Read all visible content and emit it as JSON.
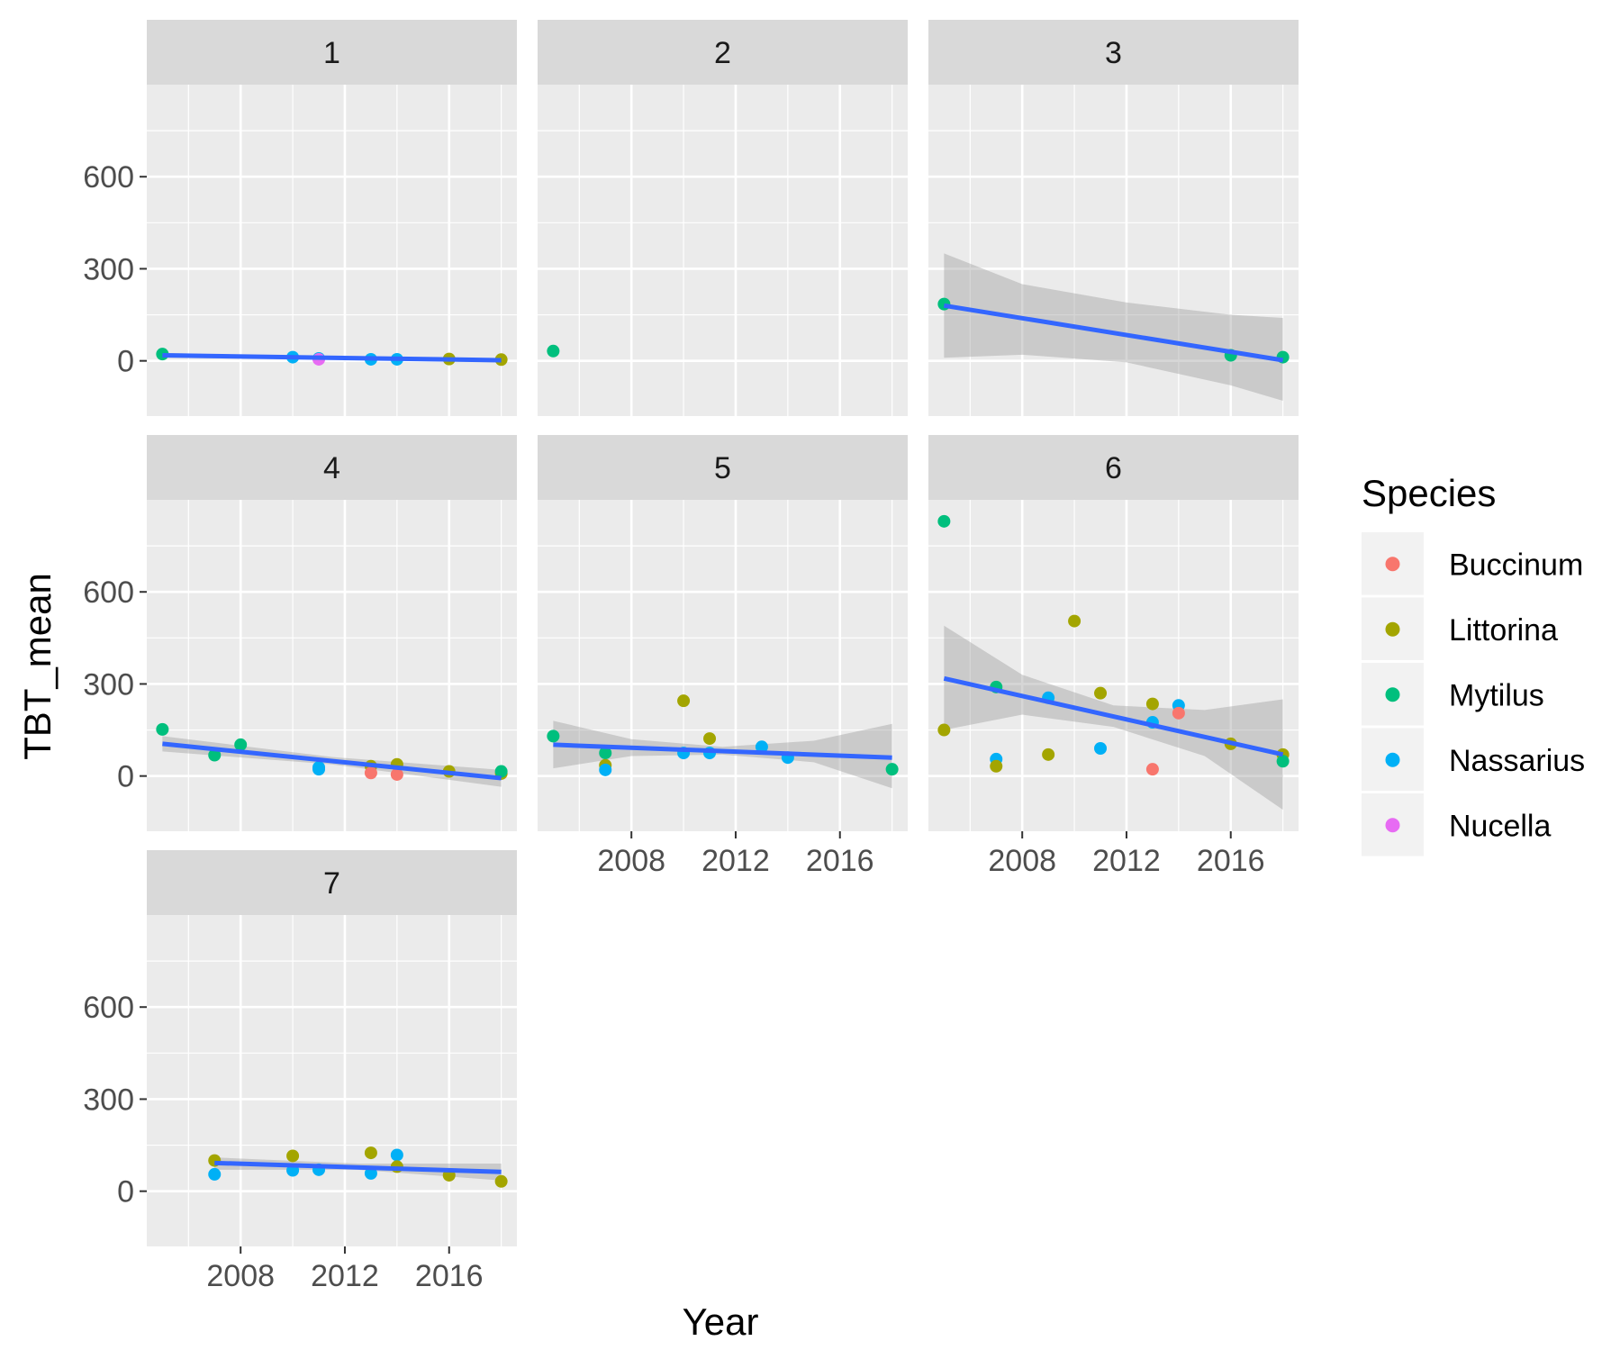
{
  "chart_data": {
    "type": "scatter",
    "xlabel": "Year",
    "ylabel": "TBT_mean",
    "xlim": [
      2004.4,
      2018.6
    ],
    "ylim": [
      -180,
      900
    ],
    "x_ticks": [
      2008,
      2012,
      2016
    ],
    "y_ticks": [
      0,
      300,
      600
    ],
    "grid": true,
    "legend_position": "right",
    "legend": {
      "title": "Species",
      "entries": [
        {
          "name": "Buccinum",
          "color": "#F8766D"
        },
        {
          "name": "Littorina",
          "color": "#A3A500"
        },
        {
          "name": "Mytilus",
          "color": "#00BF7D"
        },
        {
          "name": "Nassarius",
          "color": "#00B0F6"
        },
        {
          "name": "Nucella",
          "color": "#E76BF3"
        }
      ]
    },
    "panels": [
      {
        "label": "1",
        "points": [
          {
            "x": 2005,
            "y": 22,
            "species": "Mytilus"
          },
          {
            "x": 2010,
            "y": 12,
            "species": "Nassarius"
          },
          {
            "x": 2011,
            "y": 8,
            "species": "Nassarius"
          },
          {
            "x": 2011,
            "y": 5,
            "species": "Nucella"
          },
          {
            "x": 2013,
            "y": 5,
            "species": "Nassarius"
          },
          {
            "x": 2014,
            "y": 5,
            "species": "Nassarius"
          },
          {
            "x": 2016,
            "y": 6,
            "species": "Littorina"
          },
          {
            "x": 2018,
            "y": 4,
            "species": "Littorina"
          }
        ],
        "fit": {
          "x": [
            2005,
            2018
          ],
          "y": [
            18,
            2
          ]
        },
        "ci": {
          "x": [
            2005,
            2011.5,
            2018
          ],
          "upper": [
            26,
            12,
            9
          ],
          "lower": [
            10,
            4,
            -5
          ]
        }
      },
      {
        "label": "2",
        "points": [
          {
            "x": 2005,
            "y": 32,
            "species": "Mytilus"
          }
        ]
      },
      {
        "label": "3",
        "points": [
          {
            "x": 2005,
            "y": 185,
            "species": "Mytilus"
          },
          {
            "x": 2016,
            "y": 18,
            "species": "Mytilus"
          },
          {
            "x": 2018,
            "y": 12,
            "species": "Mytilus"
          }
        ],
        "fit": {
          "x": [
            2005,
            2018
          ],
          "y": [
            180,
            2
          ]
        },
        "ci": {
          "x": [
            2005,
            2008,
            2012,
            2016,
            2018
          ],
          "upper": [
            350,
            250,
            190,
            150,
            140
          ],
          "lower": [
            10,
            20,
            -5,
            -80,
            -130
          ]
        }
      },
      {
        "label": "4",
        "points": [
          {
            "x": 2005,
            "y": 152,
            "species": "Mytilus"
          },
          {
            "x": 2007,
            "y": 68,
            "species": "Mytilus"
          },
          {
            "x": 2008,
            "y": 102,
            "species": "Mytilus"
          },
          {
            "x": 2011,
            "y": 28,
            "species": "Nassarius"
          },
          {
            "x": 2011,
            "y": 22,
            "species": "Nassarius"
          },
          {
            "x": 2013,
            "y": 32,
            "species": "Littorina"
          },
          {
            "x": 2013,
            "y": 10,
            "species": "Buccinum"
          },
          {
            "x": 2014,
            "y": 38,
            "species": "Littorina"
          },
          {
            "x": 2014,
            "y": 5,
            "species": "Buccinum"
          },
          {
            "x": 2016,
            "y": 15,
            "species": "Littorina"
          },
          {
            "x": 2018,
            "y": 8,
            "species": "Littorina"
          },
          {
            "x": 2018,
            "y": 15,
            "species": "Mytilus"
          }
        ],
        "fit": {
          "x": [
            2005,
            2018
          ],
          "y": [
            105,
            -7
          ]
        },
        "ci": {
          "x": [
            2005,
            2011.5,
            2018
          ],
          "upper": [
            130,
            62,
            20
          ],
          "lower": [
            80,
            38,
            -35
          ]
        }
      },
      {
        "label": "5",
        "points": [
          {
            "x": 2005,
            "y": 130,
            "species": "Mytilus"
          },
          {
            "x": 2007,
            "y": 75,
            "species": "Mytilus"
          },
          {
            "x": 2007,
            "y": 35,
            "species": "Littorina"
          },
          {
            "x": 2007,
            "y": 20,
            "species": "Nassarius"
          },
          {
            "x": 2010,
            "y": 245,
            "species": "Littorina"
          },
          {
            "x": 2010,
            "y": 75,
            "species": "Nassarius"
          },
          {
            "x": 2011,
            "y": 122,
            "species": "Littorina"
          },
          {
            "x": 2011,
            "y": 75,
            "species": "Nassarius"
          },
          {
            "x": 2013,
            "y": 95,
            "species": "Nassarius"
          },
          {
            "x": 2014,
            "y": 60,
            "species": "Nassarius"
          },
          {
            "x": 2018,
            "y": 22,
            "species": "Mytilus"
          }
        ],
        "fit": {
          "x": [
            2005,
            2018
          ],
          "y": [
            102,
            60
          ]
        },
        "ci": {
          "x": [
            2005,
            2008,
            2011.5,
            2015,
            2018
          ],
          "upper": [
            180,
            120,
            95,
            115,
            170
          ],
          "lower": [
            25,
            65,
            70,
            45,
            -40
          ]
        }
      },
      {
        "label": "6",
        "points": [
          {
            "x": 2005,
            "y": 830,
            "species": "Mytilus"
          },
          {
            "x": 2005,
            "y": 150,
            "species": "Littorina"
          },
          {
            "x": 2007,
            "y": 290,
            "species": "Mytilus"
          },
          {
            "x": 2007,
            "y": 55,
            "species": "Nassarius"
          },
          {
            "x": 2007,
            "y": 32,
            "species": "Littorina"
          },
          {
            "x": 2009,
            "y": 255,
            "species": "Nassarius"
          },
          {
            "x": 2009,
            "y": 70,
            "species": "Littorina"
          },
          {
            "x": 2010,
            "y": 505,
            "species": "Littorina"
          },
          {
            "x": 2011,
            "y": 270,
            "species": "Littorina"
          },
          {
            "x": 2011,
            "y": 90,
            "species": "Nassarius"
          },
          {
            "x": 2013,
            "y": 235,
            "species": "Littorina"
          },
          {
            "x": 2013,
            "y": 175,
            "species": "Nassarius"
          },
          {
            "x": 2013,
            "y": 22,
            "species": "Buccinum"
          },
          {
            "x": 2014,
            "y": 230,
            "species": "Nassarius"
          },
          {
            "x": 2014,
            "y": 205,
            "species": "Buccinum"
          },
          {
            "x": 2016,
            "y": 105,
            "species": "Littorina"
          },
          {
            "x": 2018,
            "y": 70,
            "species": "Littorina"
          },
          {
            "x": 2018,
            "y": 48,
            "species": "Mytilus"
          }
        ],
        "fit": {
          "x": [
            2005,
            2018
          ],
          "y": [
            318,
            70
          ]
        },
        "ci": {
          "x": [
            2005,
            2008,
            2011.5,
            2015,
            2018
          ],
          "upper": [
            490,
            330,
            230,
            215,
            250
          ],
          "lower": [
            150,
            200,
            160,
            65,
            -110
          ]
        }
      },
      {
        "label": "7",
        "points": [
          {
            "x": 2007,
            "y": 100,
            "species": "Littorina"
          },
          {
            "x": 2007,
            "y": 55,
            "species": "Nassarius"
          },
          {
            "x": 2010,
            "y": 115,
            "species": "Littorina"
          },
          {
            "x": 2010,
            "y": 68,
            "species": "Nassarius"
          },
          {
            "x": 2011,
            "y": 70,
            "species": "Nassarius"
          },
          {
            "x": 2013,
            "y": 125,
            "species": "Littorina"
          },
          {
            "x": 2013,
            "y": 58,
            "species": "Nassarius"
          },
          {
            "x": 2014,
            "y": 118,
            "species": "Nassarius"
          },
          {
            "x": 2014,
            "y": 80,
            "species": "Littorina"
          },
          {
            "x": 2016,
            "y": 52,
            "species": "Littorina"
          },
          {
            "x": 2018,
            "y": 32,
            "species": "Littorina"
          }
        ],
        "fit": {
          "x": [
            2007,
            2018
          ],
          "y": [
            92,
            63
          ]
        },
        "ci": {
          "x": [
            2007,
            2012.5,
            2018
          ],
          "upper": [
            110,
            90,
            90
          ],
          "lower": [
            70,
            70,
            35
          ]
        }
      }
    ]
  }
}
